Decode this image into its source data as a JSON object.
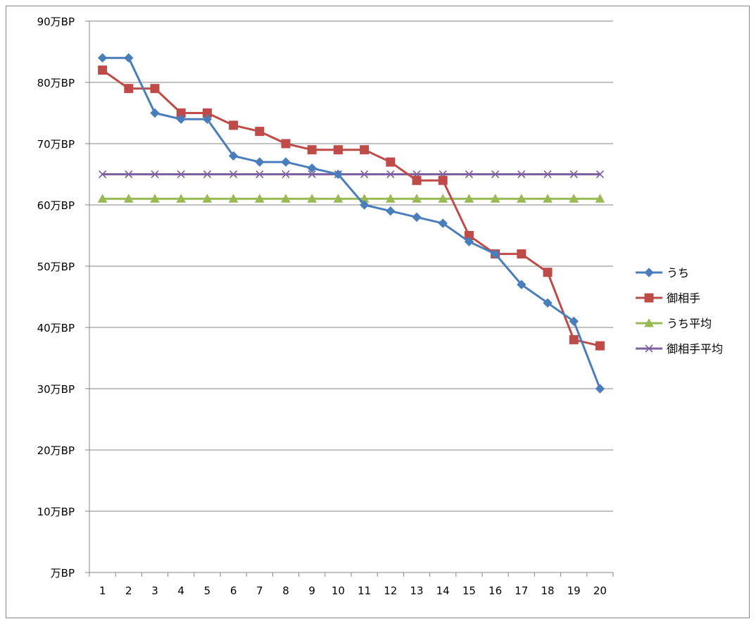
{
  "chart_data": {
    "type": "line",
    "title": "",
    "xlabel": "",
    "ylabel": "",
    "x": [
      1,
      2,
      3,
      4,
      5,
      6,
      7,
      8,
      9,
      10,
      11,
      12,
      13,
      14,
      15,
      16,
      17,
      18,
      19,
      20
    ],
    "ylim": [
      0,
      90
    ],
    "ytick_values": [
      0,
      10,
      20,
      30,
      40,
      50,
      60,
      70,
      80,
      90
    ],
    "ytick_labels": [
      "万BP",
      "10万BP",
      "20万BP",
      "30万BP",
      "40万BP",
      "50万BP",
      "60万BP",
      "70万BP",
      "80万BP",
      "90万BP"
    ],
    "grid": "horizontal",
    "legend_position": "right",
    "series": [
      {
        "name": "うち",
        "color": "#4a7ebb",
        "marker": "diamond",
        "values": [
          84,
          84,
          75,
          74,
          74,
          68,
          67,
          67,
          66,
          65,
          60,
          59,
          58,
          57,
          54,
          52,
          47,
          44,
          41,
          30
        ]
      },
      {
        "name": "御相手",
        "color": "#be4b48",
        "marker": "square",
        "values": [
          82,
          79,
          79,
          75,
          75,
          73,
          72,
          70,
          69,
          69,
          69,
          67,
          64,
          64,
          55,
          52,
          52,
          49,
          38,
          37
        ]
      },
      {
        "name": "うち平均",
        "color": "#98b954",
        "marker": "triangle",
        "values": [
          61,
          61,
          61,
          61,
          61,
          61,
          61,
          61,
          61,
          61,
          61,
          61,
          61,
          61,
          61,
          61,
          61,
          61,
          61,
          61
        ]
      },
      {
        "name": "御相手平均",
        "color": "#7d60a0",
        "marker": "x",
        "values": [
          65,
          65,
          65,
          65,
          65,
          65,
          65,
          65,
          65,
          65,
          65,
          65,
          65,
          65,
          65,
          65,
          65,
          65,
          65,
          65
        ]
      }
    ]
  }
}
